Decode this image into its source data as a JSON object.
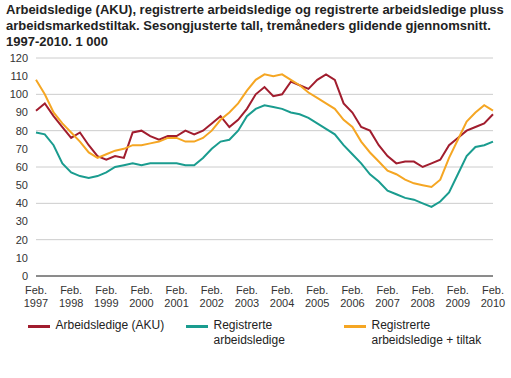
{
  "chart_data": {
    "type": "line",
    "title": "Arbeidsledige (AKU), registrerte arbeidsledige og registrerte arbeidsledige pluss arbeidsmarkedstiltak. Sesongjusterte tall, tremåneders glidende gjennomsnitt. 1997-2010. 1 000",
    "categories": [
      "Feb. 1997",
      null,
      null,
      null,
      "Feb. 1998",
      null,
      null,
      null,
      "Feb. 1999",
      null,
      null,
      null,
      "Feb. 2000",
      null,
      null,
      null,
      "Feb. 2001",
      null,
      null,
      null,
      "Feb. 2002",
      null,
      null,
      null,
      "Feb. 2003",
      null,
      null,
      null,
      "Feb. 2004",
      null,
      null,
      null,
      "Feb. 2005",
      null,
      null,
      null,
      "Feb. 2006",
      null,
      null,
      null,
      "Feb. 2007",
      null,
      null,
      null,
      "Feb. 2008",
      null,
      null,
      null,
      "Feb. 2009",
      null,
      null,
      null,
      "Feb. 2010"
    ],
    "series": [
      {
        "name": "Arbeidsledige (AKU)",
        "color": "#a11d2e",
        "values": [
          91,
          95,
          88,
          82,
          76,
          79,
          72,
          66,
          64,
          66,
          65,
          79,
          80,
          77,
          75,
          77,
          77,
          80,
          78,
          80,
          84,
          88,
          82,
          86,
          92,
          100,
          104,
          99,
          100,
          107,
          105,
          103,
          108,
          111,
          108,
          95,
          90,
          82,
          80,
          72,
          66,
          62,
          63,
          63,
          60,
          62,
          64,
          72,
          76,
          80,
          82,
          84,
          89
        ]
      },
      {
        "name": "Registrerte arbeidsledige",
        "color": "#1a9c8f",
        "values": [
          79,
          78,
          72,
          62,
          57,
          55,
          54,
          55,
          57,
          60,
          61,
          62,
          61,
          62,
          62,
          62,
          62,
          61,
          61,
          65,
          70,
          74,
          75,
          80,
          88,
          92,
          94,
          93,
          92,
          90,
          89,
          87,
          84,
          81,
          78,
          72,
          67,
          62,
          56,
          52,
          47,
          45,
          43,
          42,
          40,
          38,
          41,
          46,
          56,
          66,
          71,
          72,
          74
        ]
      },
      {
        "name": "Registrerte arbeidsledige + tiltak",
        "color": "#f5a623",
        "values": [
          108,
          100,
          90,
          84,
          79,
          74,
          68,
          65,
          67,
          69,
          70,
          72,
          72,
          73,
          74,
          76,
          76,
          74,
          74,
          76,
          80,
          86,
          90,
          95,
          102,
          108,
          111,
          110,
          111,
          108,
          105,
          101,
          98,
          95,
          92,
          86,
          82,
          74,
          68,
          63,
          58,
          56,
          53,
          51,
          50,
          49,
          53,
          65,
          75,
          85,
          90,
          94,
          91
        ]
      }
    ],
    "ylim": [
      0,
      120
    ],
    "yticks": [
      0,
      10,
      20,
      30,
      40,
      50,
      60,
      70,
      80,
      90,
      100,
      110,
      120
    ],
    "grid": true
  }
}
